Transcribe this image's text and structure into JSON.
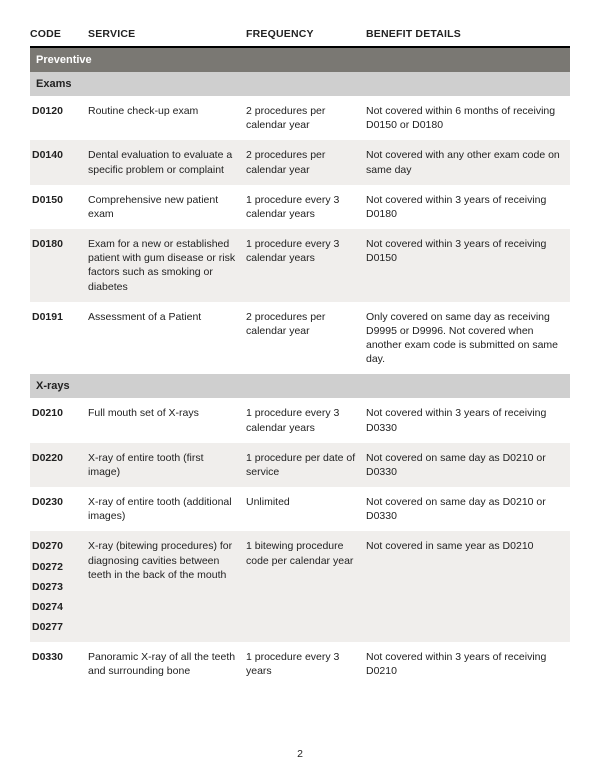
{
  "headers": {
    "code": "CODE",
    "service": "SERVICE",
    "frequency": "FREQUENCY",
    "benefit": "BENEFIT DETAILS"
  },
  "section": "Preventive",
  "subsections": [
    {
      "title": "Exams",
      "rows": [
        {
          "codes": [
            "D0120"
          ],
          "service": "Routine check-up exam",
          "frequency": "2 procedures per calendar year",
          "benefit": "Not covered within 6 months of receiving D0150 or D0180",
          "alt": false
        },
        {
          "codes": [
            "D0140"
          ],
          "service": "Dental evaluation to evaluate a specific problem or complaint",
          "frequency": "2 procedures per calendar year",
          "benefit": "Not covered with any other exam code on same day",
          "alt": true
        },
        {
          "codes": [
            "D0150"
          ],
          "service": "Comprehensive new patient exam",
          "frequency": "1 procedure every 3 calendar years",
          "benefit": "Not covered within 3 years of receiving D0180",
          "alt": false
        },
        {
          "codes": [
            "D0180"
          ],
          "service": "Exam for a new or established patient with gum disease or risk factors such as smoking or diabetes",
          "frequency": "1 procedure every 3 calendar years",
          "benefit": "Not covered within 3 years of receiving D0150",
          "alt": true
        },
        {
          "codes": [
            "D0191"
          ],
          "service": "Assessment of a Patient",
          "frequency": "2 procedures per calendar year",
          "benefit": "Only covered on same day as receiving D9995 or D9996. Not covered when another exam code is submitted on same day.",
          "alt": false
        }
      ]
    },
    {
      "title": "X-rays",
      "rows": [
        {
          "codes": [
            "D0210"
          ],
          "service": "Full mouth set of X-rays",
          "frequency": "1 procedure every 3 calendar years",
          "benefit": "Not covered within 3 years of receiving D0330",
          "alt": false
        },
        {
          "codes": [
            "D0220"
          ],
          "service": "X-ray of entire tooth (first image)",
          "frequency": "1 procedure per date of service",
          "benefit": "Not covered on same day as D0210 or D0330",
          "alt": true
        },
        {
          "codes": [
            "D0230"
          ],
          "service": "X-ray of entire tooth (additional images)",
          "frequency": "Unlimited",
          "benefit": "Not covered on same day as D0210 or D0330",
          "alt": false
        },
        {
          "codes": [
            "D0270",
            "D0272",
            "D0273",
            "D0274",
            "D0277"
          ],
          "service": "X-ray (bitewing procedures) for diagnosing cavities between teeth in the back of the mouth",
          "frequency": "1 bitewing procedure code per calendar year",
          "benefit": "Not covered in same year as D0210",
          "alt": true
        },
        {
          "codes": [
            "D0330"
          ],
          "service": "Panoramic X-ray of all the teeth and surrounding bone",
          "frequency": "1 procedure every 3 years",
          "benefit": "Not covered within 3 years of receiving D0210",
          "alt": false
        }
      ]
    }
  ],
  "page_number": "2"
}
